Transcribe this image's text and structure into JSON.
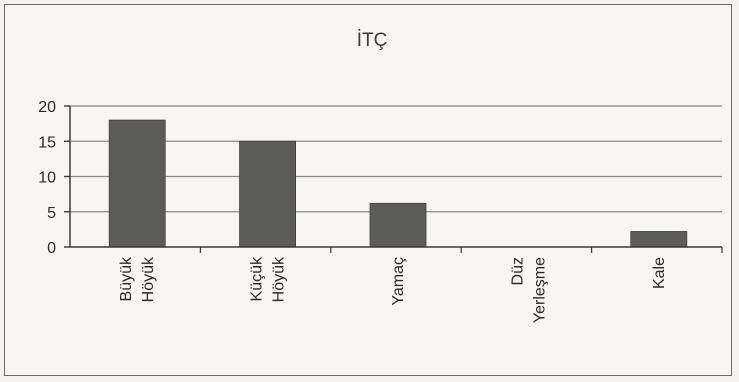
{
  "chart_data": {
    "type": "bar",
    "title": "İTÇ",
    "xlabel": "",
    "ylabel": "",
    "categories": [
      [
        "Büyük",
        "Höyük"
      ],
      [
        "Küçük",
        "Höyük"
      ],
      [
        "Yamaç"
      ],
      [
        "Düz",
        "Yerleşme"
      ],
      [
        "Kale"
      ]
    ],
    "values": [
      18,
      15,
      6.2,
      0,
      2.2
    ],
    "ylim": [
      0,
      20
    ],
    "yticks": [
      0,
      5,
      10,
      15,
      20
    ],
    "grid": true,
    "legend": "none",
    "bar_color": "#5c5c5a",
    "grid_color": "#8a8a86",
    "axis_color": "#3a3a38"
  }
}
